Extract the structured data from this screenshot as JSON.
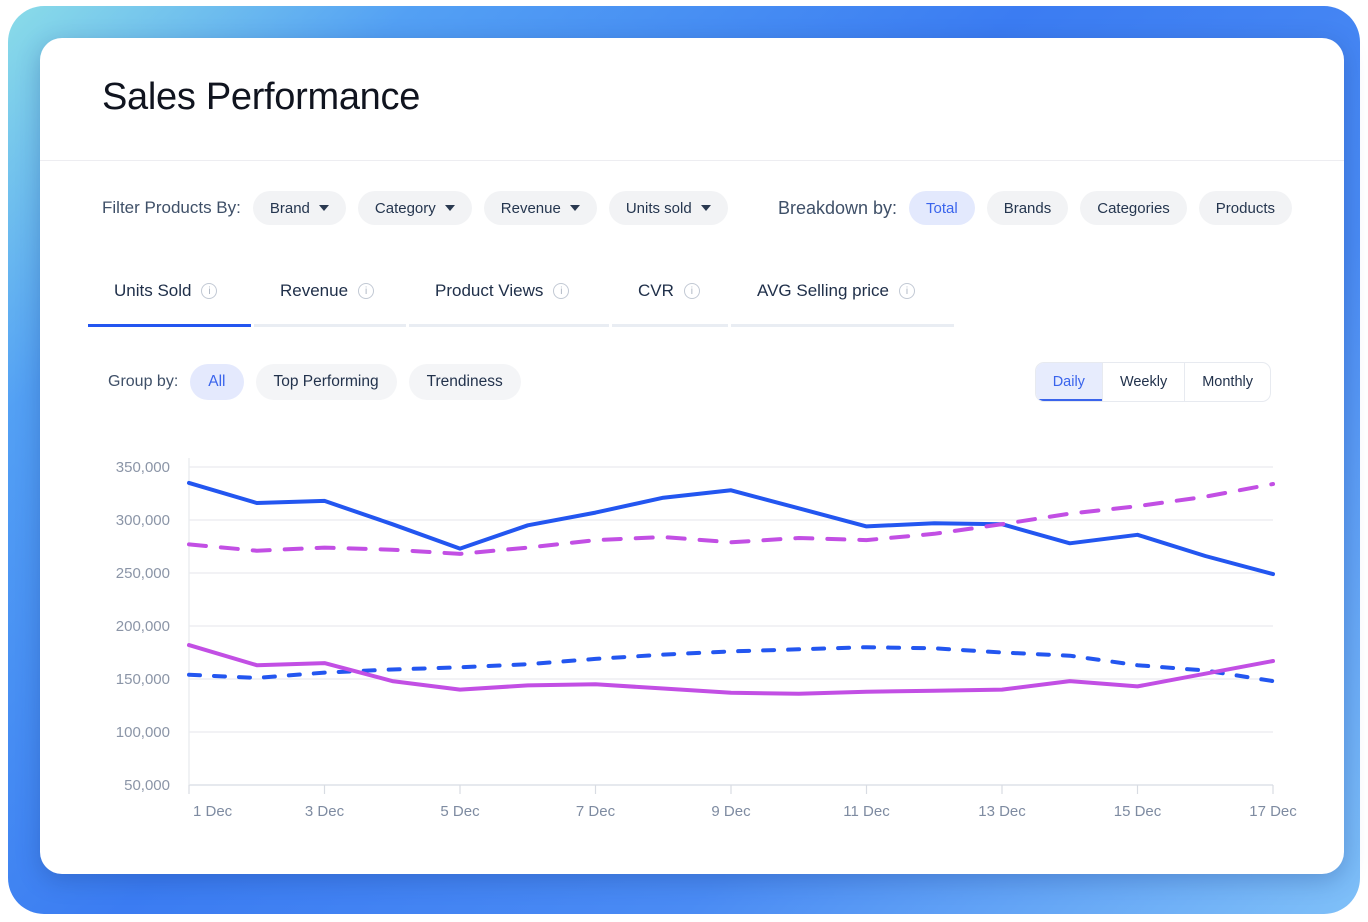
{
  "window": {
    "title": "Sales Performance"
  },
  "filters": {
    "label": "Filter Products By:",
    "items": [
      "Brand",
      "Category",
      "Revenue",
      "Units sold"
    ]
  },
  "breakdown": {
    "label": "Breakdown by:",
    "options": [
      "Total",
      "Brands",
      "Categories",
      "Products"
    ],
    "active": "Total"
  },
  "tabs": {
    "items": [
      "Units Sold",
      "Revenue",
      "Product Views",
      "CVR",
      "AVG Selling price"
    ],
    "active": "Units Sold"
  },
  "group_by": {
    "label": "Group by:",
    "options": [
      "All",
      "Top Performing",
      "Trendiness"
    ],
    "active": "All"
  },
  "period": {
    "options": [
      "Daily",
      "Weekly",
      "Monthly"
    ],
    "active": "Daily"
  },
  "colors": {
    "line_blue": "#2356f0",
    "line_magenta": "#c24fe4",
    "grid": "#e9ebef",
    "axis": "#d8dce3",
    "tick_text": "#8b95a7",
    "accent_active_bg": "#e3e9fd",
    "accent_active_text": "#3a64ec"
  },
  "chart_data": {
    "type": "line",
    "title": "",
    "xlabel": "",
    "ylabel": "",
    "x": [
      "1 Dec",
      "2 Dec",
      "3 Dec",
      "4 Dec",
      "5 Dec",
      "6 Dec",
      "7 Dec",
      "8 Dec",
      "9 Dec",
      "10 Dec",
      "11 Dec",
      "12 Dec",
      "13 Dec",
      "14 Dec",
      "15 Dec",
      "16 Dec",
      "17 Dec"
    ],
    "x_tick_labels": [
      "1 Dec",
      "3 Dec",
      "5 Dec",
      "7 Dec",
      "9 Dec",
      "11 Dec",
      "13 Dec",
      "15 Dec",
      "17 Dec"
    ],
    "y_ticks": [
      350000,
      300000,
      250000,
      200000,
      150000,
      100000,
      50000
    ],
    "y_tick_labels": [
      "350,000",
      "300,000",
      "250,000",
      "200,000",
      "150,000",
      "100,000",
      "50,000"
    ],
    "ylim": [
      50000,
      350000
    ],
    "grid": "horizontal",
    "legend": "none",
    "series": [
      {
        "name": "solid-blue-line",
        "style": "solid",
        "color": "#2356f0",
        "values": [
          335000,
          316000,
          318000,
          296000,
          273000,
          295000,
          307000,
          321000,
          328000,
          311000,
          294000,
          297000,
          296000,
          278000,
          286000,
          266000,
          249000
        ]
      },
      {
        "name": "dashed-magenta-line",
        "style": "dashed",
        "color": "#c24fe4",
        "values": [
          277000,
          271000,
          274000,
          272000,
          268000,
          274000,
          281000,
          284000,
          279000,
          283000,
          281000,
          287000,
          296000,
          306000,
          313000,
          322000,
          334000
        ]
      },
      {
        "name": "dashed-blue-line",
        "style": "dashed",
        "color": "#2356f0",
        "values": [
          154000,
          151000,
          156000,
          159000,
          161000,
          164000,
          169000,
          173000,
          176000,
          178000,
          180000,
          179000,
          175000,
          172000,
          163000,
          158000,
          148000
        ]
      },
      {
        "name": "solid-magenta-line",
        "style": "solid",
        "color": "#c24fe4",
        "values": [
          182000,
          163000,
          165000,
          148000,
          140000,
          144000,
          145000,
          141000,
          137000,
          136000,
          138000,
          139000,
          140000,
          148000,
          143000,
          155000,
          167000
        ]
      }
    ]
  }
}
